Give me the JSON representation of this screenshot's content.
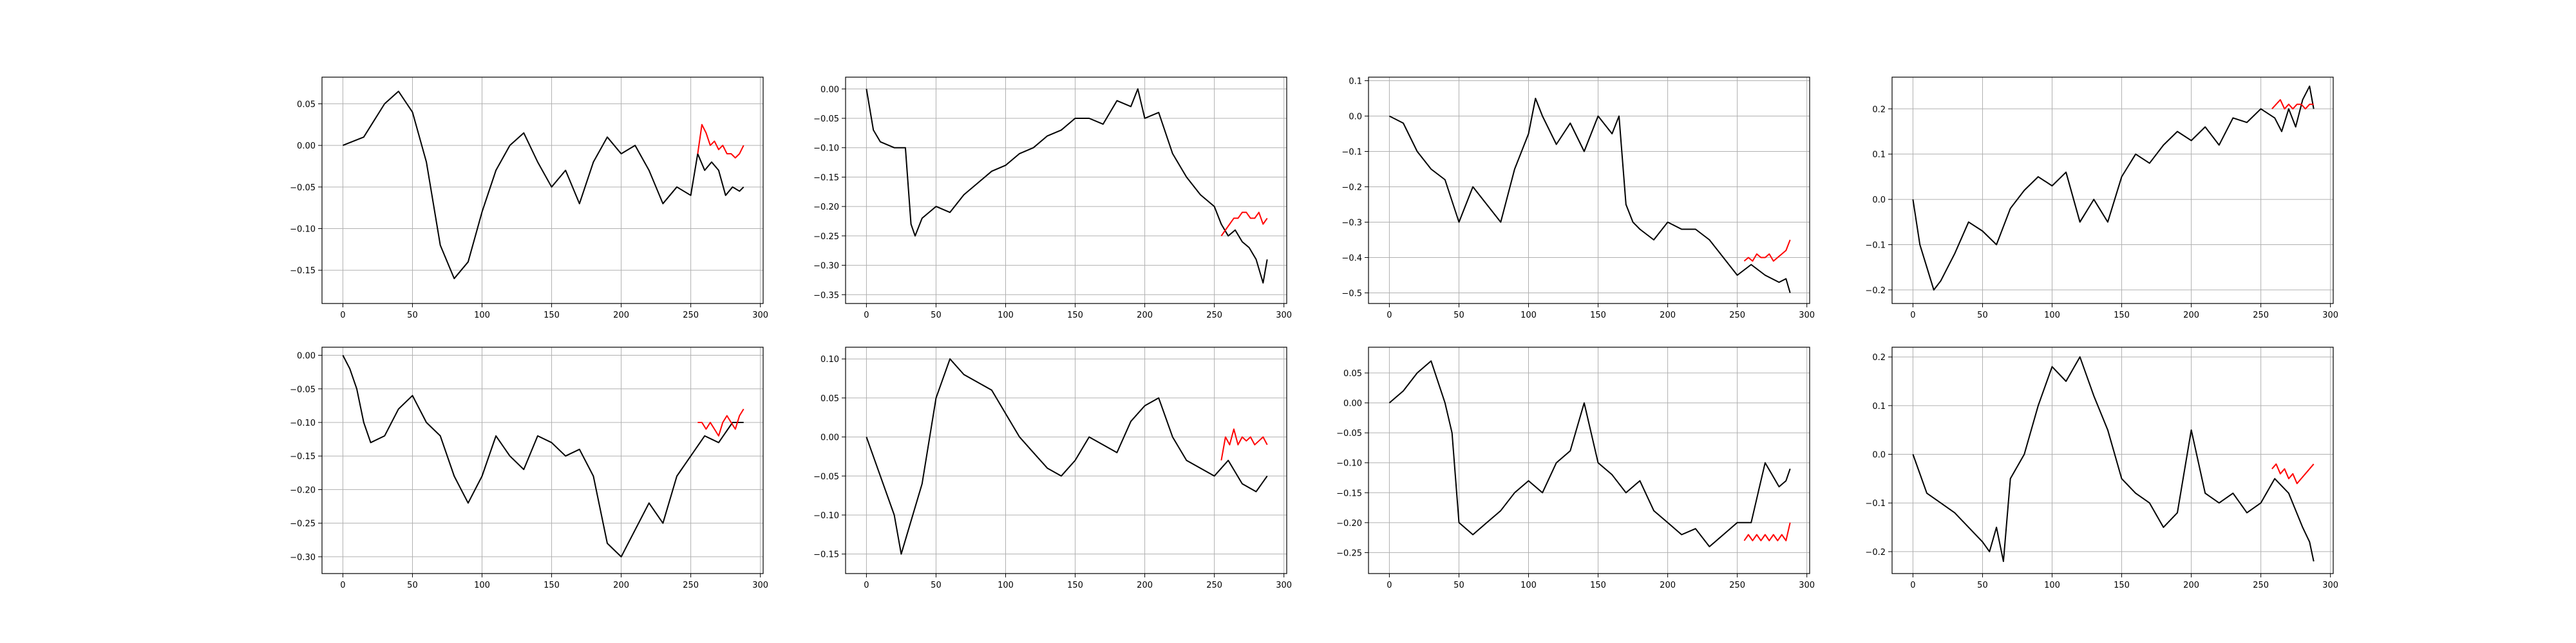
{
  "figure": {
    "background": "#ffffff"
  },
  "style": {
    "actual_color": "#000000",
    "predicted_color": "#ff0000",
    "grid_color": "#b0b0b0"
  },
  "chart_data": [
    {
      "type": "line",
      "xlim": [
        -15,
        302
      ],
      "ylim": [
        -0.19,
        0.082
      ],
      "xticks": [
        0,
        50,
        100,
        150,
        200,
        250,
        300
      ],
      "yticks": [
        -0.15,
        -0.1,
        -0.05,
        0.0,
        0.05
      ],
      "ytick_labels": [
        "−0.15",
        "−0.10",
        "−0.05",
        "0.00",
        "0.05"
      ],
      "grid": true,
      "series": [
        {
          "role": "actual",
          "color": "#000000",
          "x": [
            0,
            15,
            30,
            40,
            50,
            60,
            70,
            80,
            90,
            100,
            110,
            120,
            130,
            140,
            150,
            160,
            170,
            180,
            190,
            200,
            210,
            220,
            230,
            240,
            250,
            255,
            260,
            265,
            270,
            275,
            280,
            285,
            288
          ],
          "y": [
            0.0,
            0.01,
            0.05,
            0.065,
            0.04,
            -0.02,
            -0.12,
            -0.16,
            -0.14,
            -0.08,
            -0.03,
            0.0,
            0.015,
            -0.02,
            -0.05,
            -0.03,
            -0.07,
            -0.02,
            0.01,
            -0.01,
            0.0,
            -0.03,
            -0.07,
            -0.05,
            -0.06,
            -0.01,
            -0.03,
            -0.02,
            -0.03,
            -0.06,
            -0.05,
            -0.055,
            -0.05
          ]
        },
        {
          "role": "predicted",
          "color": "#ff0000",
          "x": [
            255,
            258,
            261,
            264,
            267,
            270,
            273,
            276,
            279,
            282,
            285,
            288
          ],
          "y": [
            -0.01,
            0.025,
            0.015,
            0.0,
            0.005,
            -0.005,
            0.0,
            -0.01,
            -0.01,
            -0.015,
            -0.01,
            0.0
          ]
        }
      ]
    },
    {
      "type": "line",
      "xlim": [
        -15,
        302
      ],
      "ylim": [
        -0.365,
        0.02
      ],
      "xticks": [
        0,
        50,
        100,
        150,
        200,
        250,
        300
      ],
      "yticks": [
        -0.35,
        -0.3,
        -0.25,
        -0.2,
        -0.15,
        -0.1,
        -0.05,
        0.0
      ],
      "ytick_labels": [
        "−0.35",
        "−0.30",
        "−0.25",
        "−0.20",
        "−0.15",
        "−0.10",
        "−0.05",
        "0.00"
      ],
      "grid": true,
      "series": [
        {
          "role": "actual",
          "color": "#000000",
          "x": [
            0,
            5,
            10,
            20,
            28,
            32,
            35,
            40,
            50,
            60,
            70,
            80,
            90,
            100,
            110,
            120,
            130,
            140,
            150,
            160,
            170,
            180,
            190,
            195,
            200,
            210,
            220,
            230,
            240,
            250,
            255,
            260,
            265,
            270,
            275,
            280,
            285,
            288
          ],
          "y": [
            0.0,
            -0.07,
            -0.09,
            -0.1,
            -0.1,
            -0.23,
            -0.25,
            -0.22,
            -0.2,
            -0.21,
            -0.18,
            -0.16,
            -0.14,
            -0.13,
            -0.11,
            -0.1,
            -0.08,
            -0.07,
            -0.05,
            -0.05,
            -0.06,
            -0.02,
            -0.03,
            0.0,
            -0.05,
            -0.04,
            -0.11,
            -0.15,
            -0.18,
            -0.2,
            -0.23,
            -0.25,
            -0.24,
            -0.26,
            -0.27,
            -0.29,
            -0.33,
            -0.29
          ]
        },
        {
          "role": "predicted",
          "color": "#ff0000",
          "x": [
            255,
            258,
            261,
            264,
            267,
            270,
            273,
            276,
            279,
            282,
            285,
            288
          ],
          "y": [
            -0.25,
            -0.24,
            -0.23,
            -0.22,
            -0.22,
            -0.21,
            -0.21,
            -0.22,
            -0.22,
            -0.21,
            -0.23,
            -0.22
          ]
        }
      ]
    },
    {
      "type": "line",
      "xlim": [
        -15,
        302
      ],
      "ylim": [
        -0.53,
        0.11
      ],
      "xticks": [
        0,
        50,
        100,
        150,
        200,
        250,
        300
      ],
      "yticks": [
        -0.5,
        -0.4,
        -0.3,
        -0.2,
        -0.1,
        0.0,
        0.1
      ],
      "ytick_labels": [
        "−0.5",
        "−0.4",
        "−0.3",
        "−0.2",
        "−0.1",
        "0.0",
        "0.1"
      ],
      "grid": true,
      "series": [
        {
          "role": "actual",
          "color": "#000000",
          "x": [
            0,
            10,
            20,
            30,
            40,
            50,
            60,
            70,
            80,
            90,
            100,
            105,
            110,
            120,
            130,
            140,
            150,
            160,
            165,
            170,
            175,
            180,
            190,
            200,
            210,
            220,
            230,
            240,
            250,
            260,
            270,
            280,
            285,
            288
          ],
          "y": [
            0.0,
            -0.02,
            -0.1,
            -0.15,
            -0.18,
            -0.3,
            -0.2,
            -0.25,
            -0.3,
            -0.15,
            -0.05,
            0.05,
            0.0,
            -0.08,
            -0.02,
            -0.1,
            0.0,
            -0.05,
            0.0,
            -0.25,
            -0.3,
            -0.32,
            -0.35,
            -0.3,
            -0.32,
            -0.32,
            -0.35,
            -0.4,
            -0.45,
            -0.42,
            -0.45,
            -0.47,
            -0.46,
            -0.5
          ]
        },
        {
          "role": "predicted",
          "color": "#ff0000",
          "x": [
            255,
            258,
            261,
            264,
            267,
            270,
            273,
            276,
            279,
            282,
            285,
            288
          ],
          "y": [
            -0.41,
            -0.4,
            -0.41,
            -0.39,
            -0.4,
            -0.4,
            -0.39,
            -0.41,
            -0.4,
            -0.39,
            -0.38,
            -0.35
          ]
        }
      ]
    },
    {
      "type": "line",
      "xlim": [
        -15,
        302
      ],
      "ylim": [
        -0.23,
        0.27
      ],
      "xticks": [
        0,
        50,
        100,
        150,
        200,
        250,
        300
      ],
      "yticks": [
        -0.2,
        -0.1,
        0.0,
        0.1,
        0.2
      ],
      "ytick_labels": [
        "−0.2",
        "−0.1",
        "0.0",
        "0.1",
        "0.2"
      ],
      "grid": true,
      "series": [
        {
          "role": "actual",
          "color": "#000000",
          "x": [
            0,
            5,
            10,
            15,
            20,
            30,
            40,
            50,
            60,
            70,
            80,
            90,
            100,
            110,
            120,
            130,
            140,
            150,
            160,
            170,
            180,
            190,
            200,
            210,
            220,
            230,
            240,
            250,
            260,
            265,
            270,
            275,
            280,
            285,
            288
          ],
          "y": [
            0.0,
            -0.1,
            -0.15,
            -0.2,
            -0.18,
            -0.12,
            -0.05,
            -0.07,
            -0.1,
            -0.02,
            0.02,
            0.05,
            0.03,
            0.06,
            -0.05,
            0.0,
            -0.05,
            0.05,
            0.1,
            0.08,
            0.12,
            0.15,
            0.13,
            0.16,
            0.12,
            0.18,
            0.17,
            0.2,
            0.18,
            0.15,
            0.2,
            0.16,
            0.22,
            0.25,
            0.2
          ]
        },
        {
          "role": "predicted",
          "color": "#ff0000",
          "x": [
            258,
            261,
            264,
            267,
            270,
            273,
            276,
            279,
            282,
            285,
            288
          ],
          "y": [
            0.2,
            0.21,
            0.22,
            0.2,
            0.21,
            0.2,
            0.21,
            0.21,
            0.2,
            0.21,
            0.21
          ]
        }
      ]
    },
    {
      "type": "line",
      "xlim": [
        -15,
        302
      ],
      "ylim": [
        -0.325,
        0.012
      ],
      "xticks": [
        0,
        50,
        100,
        150,
        200,
        250,
        300
      ],
      "yticks": [
        -0.3,
        -0.25,
        -0.2,
        -0.15,
        -0.1,
        -0.05,
        0.0
      ],
      "ytick_labels": [
        "−0.30",
        "−0.25",
        "−0.20",
        "−0.15",
        "−0.10",
        "−0.05",
        "0.00"
      ],
      "grid": true,
      "series": [
        {
          "role": "actual",
          "color": "#000000",
          "x": [
            0,
            5,
            10,
            15,
            20,
            30,
            40,
            50,
            60,
            70,
            80,
            90,
            100,
            110,
            120,
            130,
            140,
            150,
            160,
            170,
            180,
            190,
            200,
            210,
            220,
            230,
            240,
            250,
            260,
            270,
            280,
            288
          ],
          "y": [
            0.0,
            -0.02,
            -0.05,
            -0.1,
            -0.13,
            -0.12,
            -0.08,
            -0.06,
            -0.1,
            -0.12,
            -0.18,
            -0.22,
            -0.18,
            -0.12,
            -0.15,
            -0.17,
            -0.12,
            -0.13,
            -0.15,
            -0.14,
            -0.18,
            -0.28,
            -0.3,
            -0.26,
            -0.22,
            -0.25,
            -0.18,
            -0.15,
            -0.12,
            -0.13,
            -0.1,
            -0.1
          ]
        },
        {
          "role": "predicted",
          "color": "#ff0000",
          "x": [
            255,
            258,
            261,
            264,
            267,
            270,
            273,
            276,
            279,
            282,
            285,
            288
          ],
          "y": [
            -0.1,
            -0.1,
            -0.11,
            -0.1,
            -0.11,
            -0.12,
            -0.1,
            -0.09,
            -0.1,
            -0.11,
            -0.09,
            -0.08
          ]
        }
      ]
    },
    {
      "type": "line",
      "xlim": [
        -15,
        302
      ],
      "ylim": [
        -0.175,
        0.115
      ],
      "xticks": [
        0,
        50,
        100,
        150,
        200,
        250,
        300
      ],
      "yticks": [
        -0.15,
        -0.1,
        -0.05,
        0.0,
        0.05,
        0.1
      ],
      "ytick_labels": [
        "−0.15",
        "−0.10",
        "−0.05",
        "0.00",
        "0.05",
        "0.10"
      ],
      "grid": true,
      "series": [
        {
          "role": "actual",
          "color": "#000000",
          "x": [
            0,
            10,
            20,
            25,
            30,
            40,
            50,
            60,
            70,
            80,
            90,
            100,
            110,
            120,
            130,
            140,
            150,
            160,
            170,
            180,
            190,
            200,
            210,
            220,
            230,
            240,
            250,
            260,
            270,
            280,
            288
          ],
          "y": [
            0.0,
            -0.05,
            -0.1,
            -0.15,
            -0.12,
            -0.06,
            0.05,
            0.1,
            0.08,
            0.07,
            0.06,
            0.03,
            0.0,
            -0.02,
            -0.04,
            -0.05,
            -0.03,
            0.0,
            -0.01,
            -0.02,
            0.02,
            0.04,
            0.05,
            0.0,
            -0.03,
            -0.04,
            -0.05,
            -0.03,
            -0.06,
            -0.07,
            -0.05
          ]
        },
        {
          "role": "predicted",
          "color": "#ff0000",
          "x": [
            255,
            258,
            261,
            264,
            267,
            270,
            273,
            276,
            279,
            282,
            285,
            288
          ],
          "y": [
            -0.03,
            0.0,
            -0.01,
            0.01,
            -0.01,
            0.0,
            -0.005,
            0.0,
            -0.01,
            -0.005,
            0.0,
            -0.01
          ]
        }
      ]
    },
    {
      "type": "line",
      "xlim": [
        -15,
        302
      ],
      "ylim": [
        -0.285,
        0.093
      ],
      "xticks": [
        0,
        50,
        100,
        150,
        200,
        250,
        300
      ],
      "yticks": [
        -0.25,
        -0.2,
        -0.15,
        -0.1,
        -0.05,
        0.0,
        0.05
      ],
      "ytick_labels": [
        "−0.25",
        "−0.20",
        "−0.15",
        "−0.10",
        "−0.05",
        "0.00",
        "0.05"
      ],
      "grid": true,
      "series": [
        {
          "role": "actual",
          "color": "#000000",
          "x": [
            0,
            10,
            20,
            30,
            40,
            45,
            50,
            60,
            70,
            80,
            90,
            100,
            110,
            120,
            130,
            140,
            150,
            160,
            170,
            180,
            190,
            200,
            210,
            220,
            230,
            240,
            250,
            260,
            265,
            270,
            275,
            280,
            285,
            288
          ],
          "y": [
            0.0,
            0.02,
            0.05,
            0.07,
            0.0,
            -0.05,
            -0.2,
            -0.22,
            -0.2,
            -0.18,
            -0.15,
            -0.13,
            -0.15,
            -0.1,
            -0.08,
            0.0,
            -0.1,
            -0.12,
            -0.15,
            -0.13,
            -0.18,
            -0.2,
            -0.22,
            -0.21,
            -0.24,
            -0.22,
            -0.2,
            -0.2,
            -0.15,
            -0.1,
            -0.12,
            -0.14,
            -0.13,
            -0.11
          ]
        },
        {
          "role": "predicted",
          "color": "#ff0000",
          "x": [
            255,
            258,
            261,
            264,
            267,
            270,
            273,
            276,
            279,
            282,
            285,
            288
          ],
          "y": [
            -0.23,
            -0.22,
            -0.23,
            -0.22,
            -0.23,
            -0.22,
            -0.23,
            -0.22,
            -0.23,
            -0.22,
            -0.23,
            -0.2
          ]
        }
      ]
    },
    {
      "type": "line",
      "xlim": [
        -15,
        302
      ],
      "ylim": [
        -0.245,
        0.22
      ],
      "xticks": [
        0,
        50,
        100,
        150,
        200,
        250,
        300
      ],
      "yticks": [
        -0.2,
        -0.1,
        0.0,
        0.1,
        0.2
      ],
      "ytick_labels": [
        "−0.2",
        "−0.1",
        "0.0",
        "0.1",
        "0.2"
      ],
      "grid": true,
      "series": [
        {
          "role": "actual",
          "color": "#000000",
          "x": [
            0,
            10,
            20,
            30,
            40,
            50,
            55,
            60,
            65,
            70,
            80,
            90,
            100,
            110,
            120,
            130,
            140,
            150,
            160,
            170,
            180,
            190,
            200,
            210,
            220,
            230,
            240,
            250,
            260,
            270,
            280,
            285,
            288
          ],
          "y": [
            0.0,
            -0.08,
            -0.1,
            -0.12,
            -0.15,
            -0.18,
            -0.2,
            -0.15,
            -0.22,
            -0.05,
            0.0,
            0.1,
            0.18,
            0.15,
            0.2,
            0.12,
            0.05,
            -0.05,
            -0.08,
            -0.1,
            -0.15,
            -0.12,
            0.05,
            -0.08,
            -0.1,
            -0.08,
            -0.12,
            -0.1,
            -0.05,
            -0.08,
            -0.15,
            -0.18,
            -0.22
          ]
        },
        {
          "role": "predicted",
          "color": "#ff0000",
          "x": [
            258,
            261,
            264,
            267,
            270,
            273,
            276,
            279,
            282,
            285,
            288
          ],
          "y": [
            -0.03,
            -0.02,
            -0.04,
            -0.03,
            -0.05,
            -0.04,
            -0.06,
            -0.05,
            -0.04,
            -0.03,
            -0.02
          ]
        }
      ]
    }
  ]
}
